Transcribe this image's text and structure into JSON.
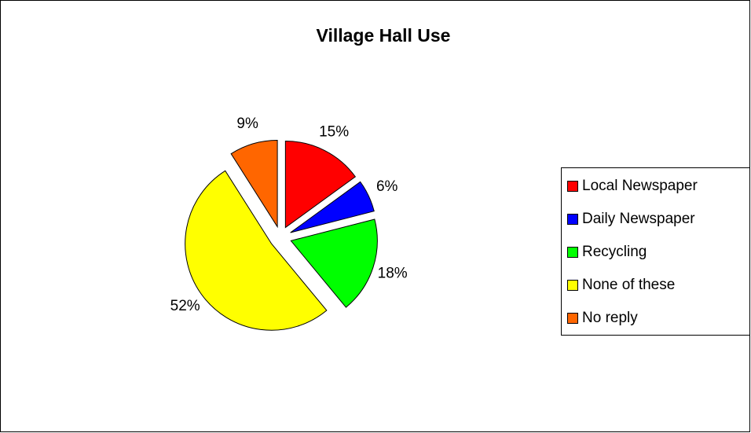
{
  "chart_data": {
    "type": "pie",
    "title": "Village Hall Use",
    "categories": [
      "Local Newspaper",
      "Daily Newspaper",
      "Recycling",
      "None of these",
      "No reply"
    ],
    "values": [
      15,
      6,
      18,
      52,
      9
    ],
    "value_labels": [
      "15%",
      "6%",
      "18%",
      "52%",
      "9%"
    ],
    "colors": [
      "#ff0000",
      "#0000ff",
      "#00ff00",
      "#ffff00",
      "#ff6600"
    ],
    "legend": "right"
  }
}
